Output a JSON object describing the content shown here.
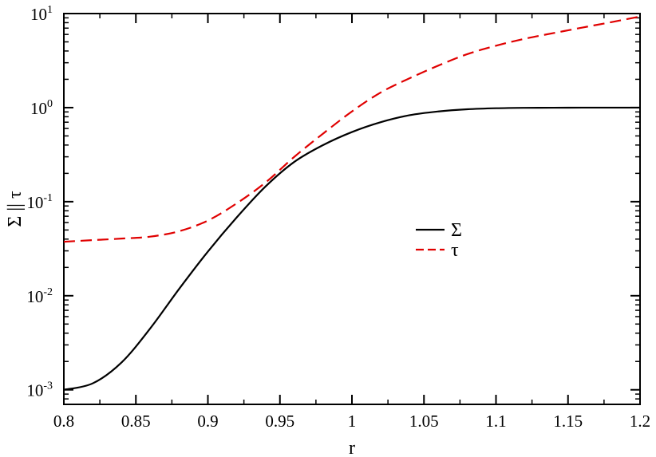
{
  "chart_data": {
    "type": "line",
    "title": "",
    "xlabel": "r",
    "ylabel": "Σ || τ",
    "xlim": [
      0.8,
      1.2
    ],
    "ylim": [
      0.0007,
      10
    ],
    "yscale": "log",
    "grid": false,
    "legend_position": "center-right",
    "x_ticks": [
      {
        "value": 0.8,
        "label": "0.8"
      },
      {
        "value": 0.85,
        "label": "0.85"
      },
      {
        "value": 0.9,
        "label": "0.9"
      },
      {
        "value": 0.95,
        "label": "0.95"
      },
      {
        "value": 1.0,
        "label": "1"
      },
      {
        "value": 1.05,
        "label": "1.05"
      },
      {
        "value": 1.1,
        "label": "1.1"
      },
      {
        "value": 1.15,
        "label": "1.15"
      },
      {
        "value": 1.2,
        "label": "1.2"
      }
    ],
    "y_ticks": [
      {
        "value": 0.001,
        "base": "10",
        "exp": "-3"
      },
      {
        "value": 0.01,
        "base": "10",
        "exp": "-2"
      },
      {
        "value": 0.1,
        "base": "10",
        "exp": "-1"
      },
      {
        "value": 1,
        "base": "10",
        "exp": "0"
      },
      {
        "value": 10,
        "base": "10",
        "exp": "1"
      }
    ],
    "x": [
      0.8,
      0.82,
      0.84,
      0.86,
      0.88,
      0.9,
      0.92,
      0.94,
      0.96,
      0.98,
      1.0,
      1.02,
      1.04,
      1.06,
      1.08,
      1.1,
      1.12,
      1.14,
      1.16,
      1.18,
      1.2
    ],
    "series": [
      {
        "name": "Σ",
        "color": "#000000",
        "dash": "solid",
        "values": [
          0.001,
          0.00117,
          0.00195,
          0.0045,
          0.0118,
          0.0295,
          0.068,
          0.145,
          0.265,
          0.4,
          0.55,
          0.7,
          0.83,
          0.91,
          0.96,
          0.985,
          0.995,
          0.998,
          1.0,
          1.0,
          1.0
        ]
      },
      {
        "name": "τ",
        "color": "#e00000",
        "dash": "dashed",
        "values": [
          0.0375,
          0.039,
          0.0405,
          0.0425,
          0.0485,
          0.063,
          0.096,
          0.16,
          0.3,
          0.53,
          0.91,
          1.45,
          2.05,
          2.8,
          3.7,
          4.55,
          5.4,
          6.2,
          7.1,
          8.1,
          9.3
        ]
      }
    ]
  }
}
